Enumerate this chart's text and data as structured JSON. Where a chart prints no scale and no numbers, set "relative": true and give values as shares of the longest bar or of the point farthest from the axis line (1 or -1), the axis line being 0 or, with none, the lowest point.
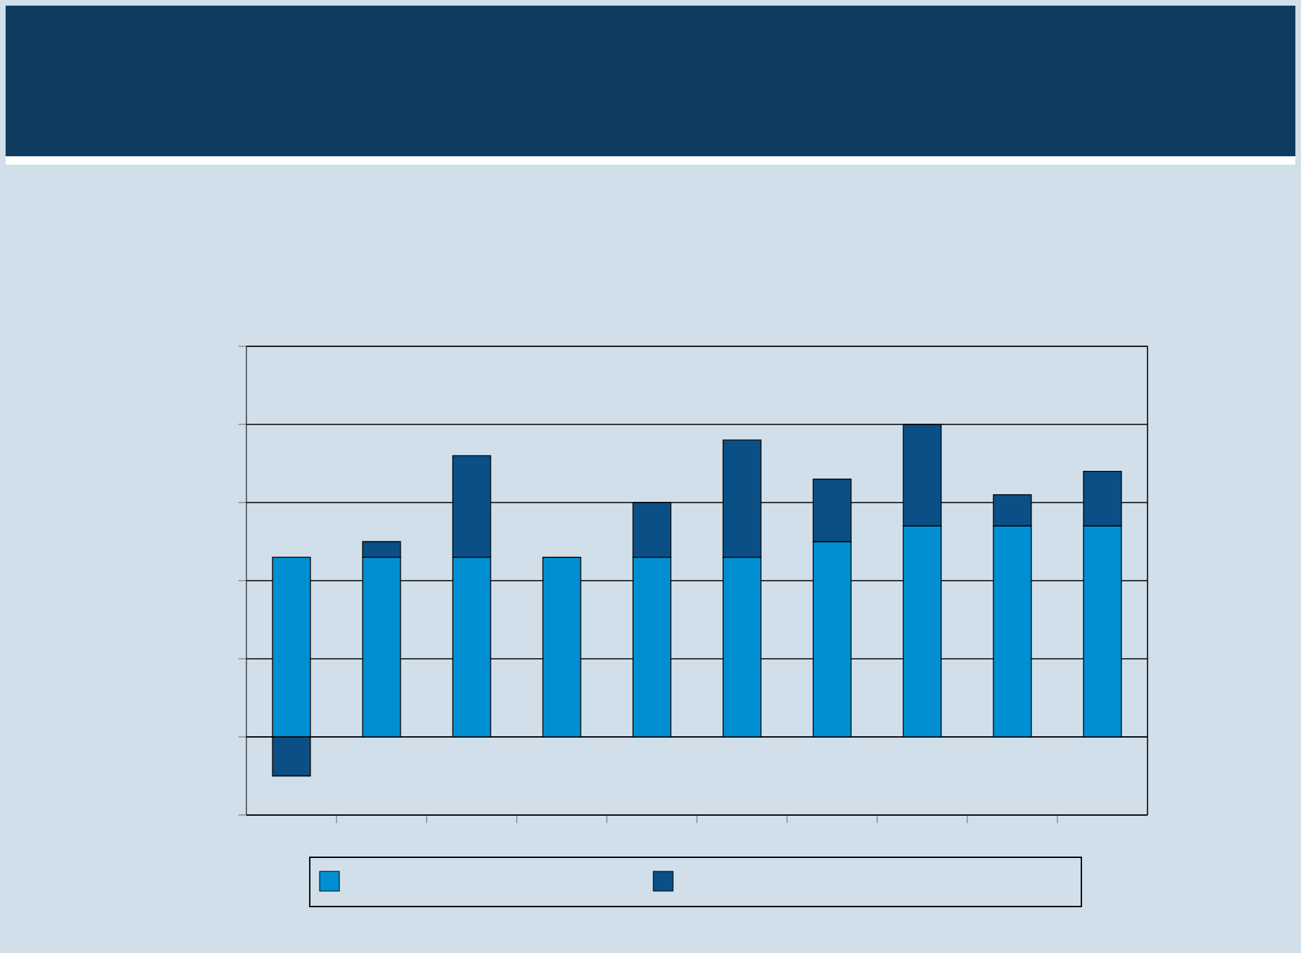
{
  "chart_data": {
    "type": "bar",
    "stacked": true,
    "relative": true,
    "grid": "y",
    "categories": [
      null,
      null,
      null,
      null,
      null,
      null,
      null,
      null,
      null,
      null
    ],
    "series": [
      {
        "color": "#008fd3",
        "values": [
          0.575,
          0.575,
          0.575,
          0.575,
          0.575,
          0.575,
          0.625,
          0.675,
          0.675,
          0.675
        ]
      },
      {
        "color": "#0a4f85",
        "values": [
          -0.125,
          0.05,
          0.325,
          0,
          0.175,
          0.375,
          0.2,
          0.325,
          0.1,
          0.175
        ]
      }
    ]
  }
}
